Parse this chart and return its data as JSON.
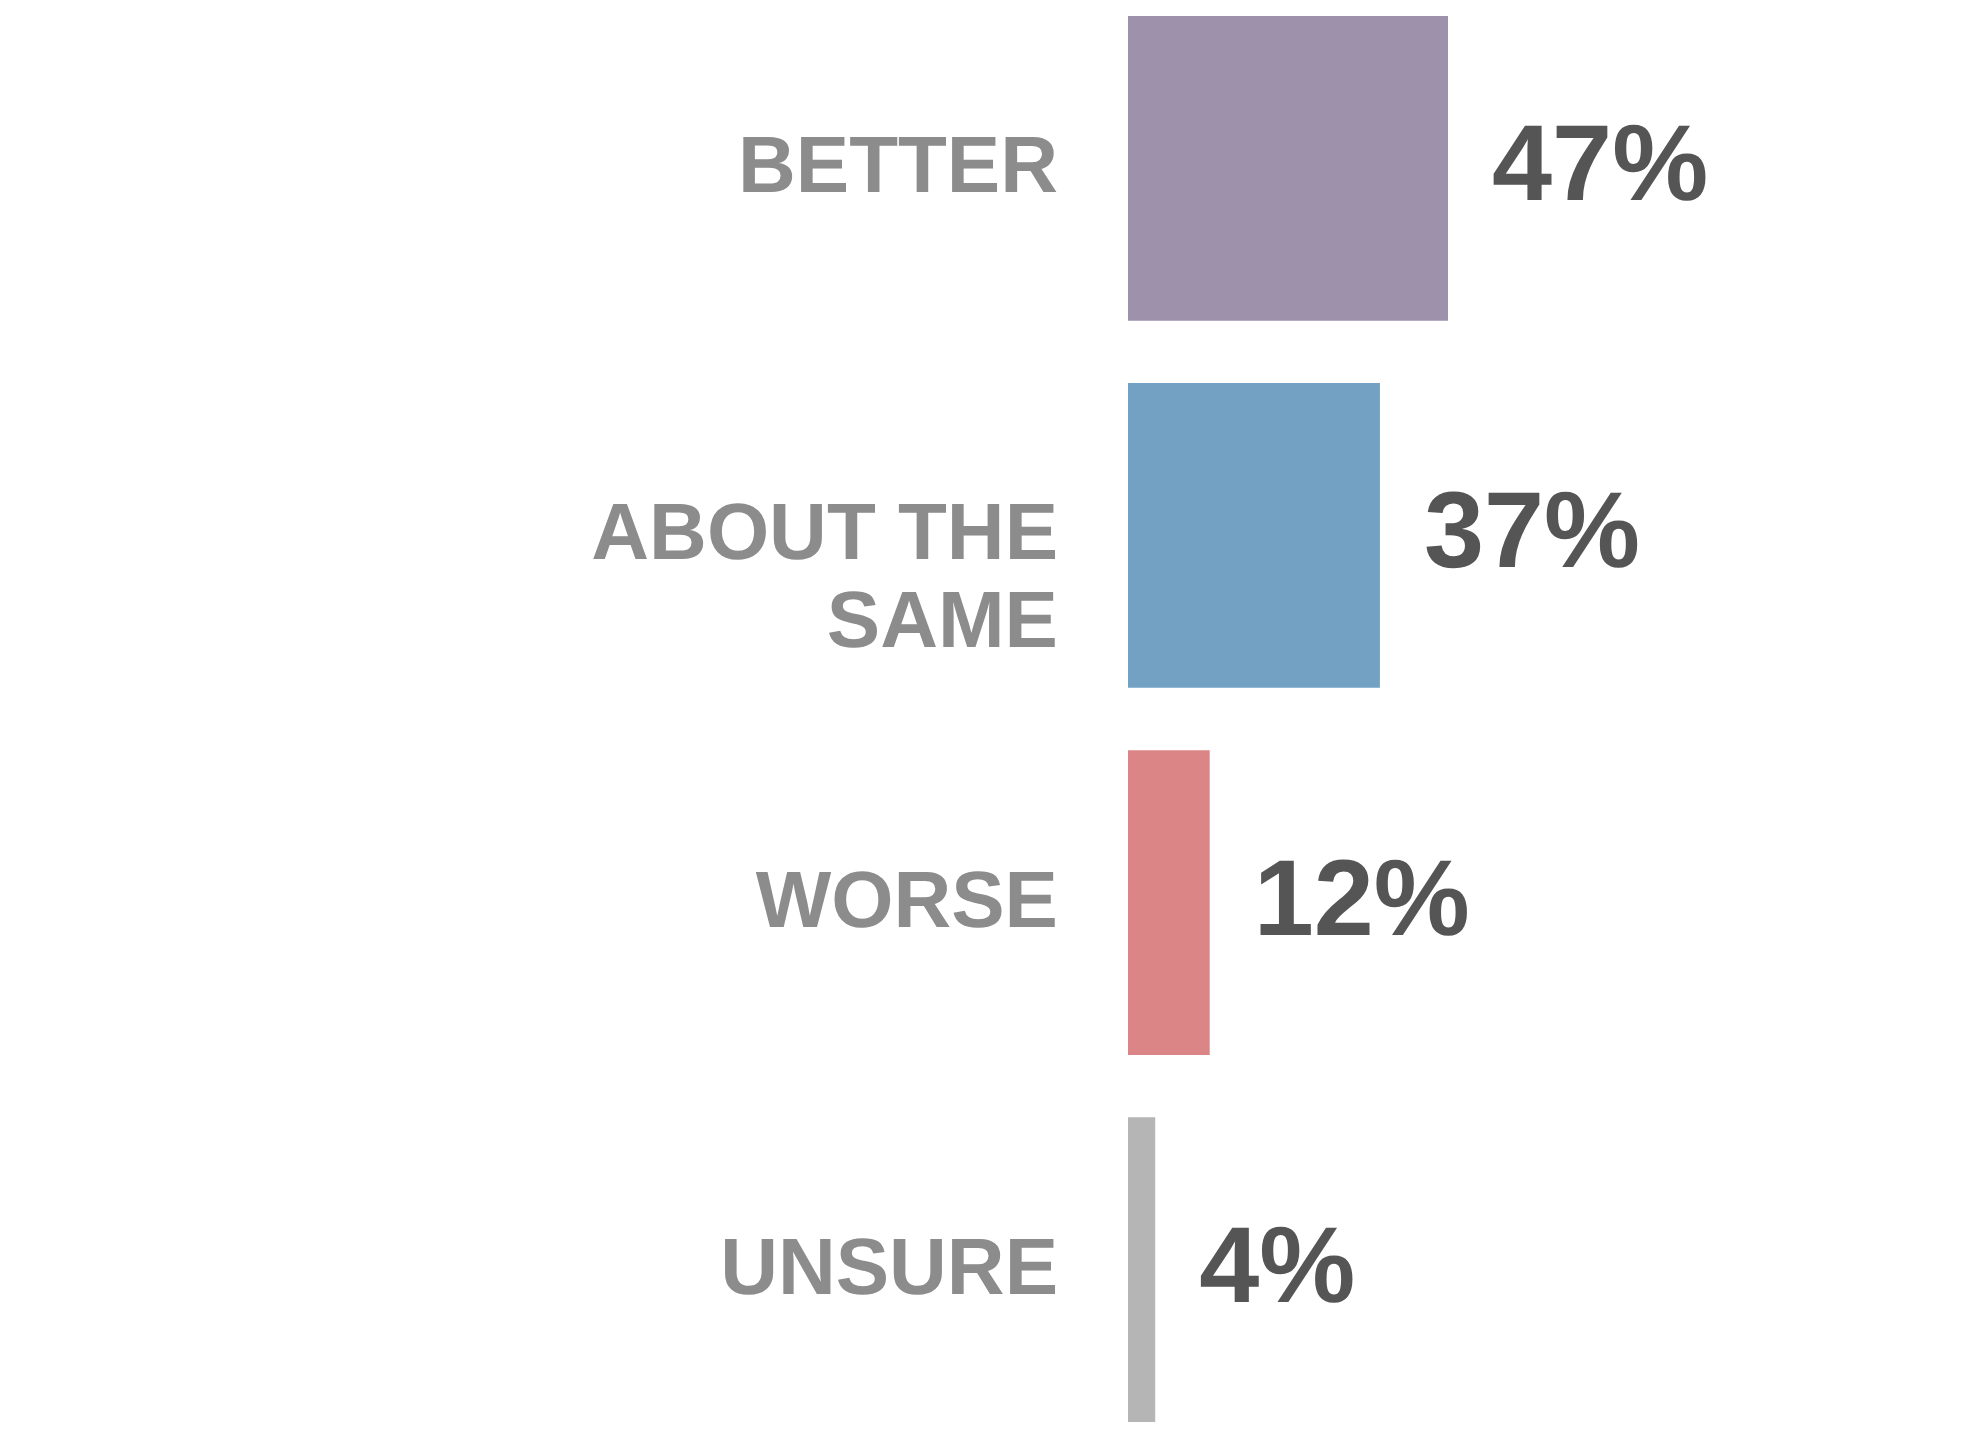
{
  "chart_data": {
    "type": "bar",
    "orientation": "horizontal",
    "categories": [
      "BETTER",
      "ABOUT THE SAME",
      "WORSE",
      "UNSURE"
    ],
    "values": [
      47,
      37,
      12,
      4
    ],
    "colors": [
      "#9d91ac",
      "#72a1c3",
      "#dc8586",
      "#b5b5b5"
    ],
    "value_labels": [
      "47%",
      "37%",
      "12%",
      "4%"
    ]
  }
}
